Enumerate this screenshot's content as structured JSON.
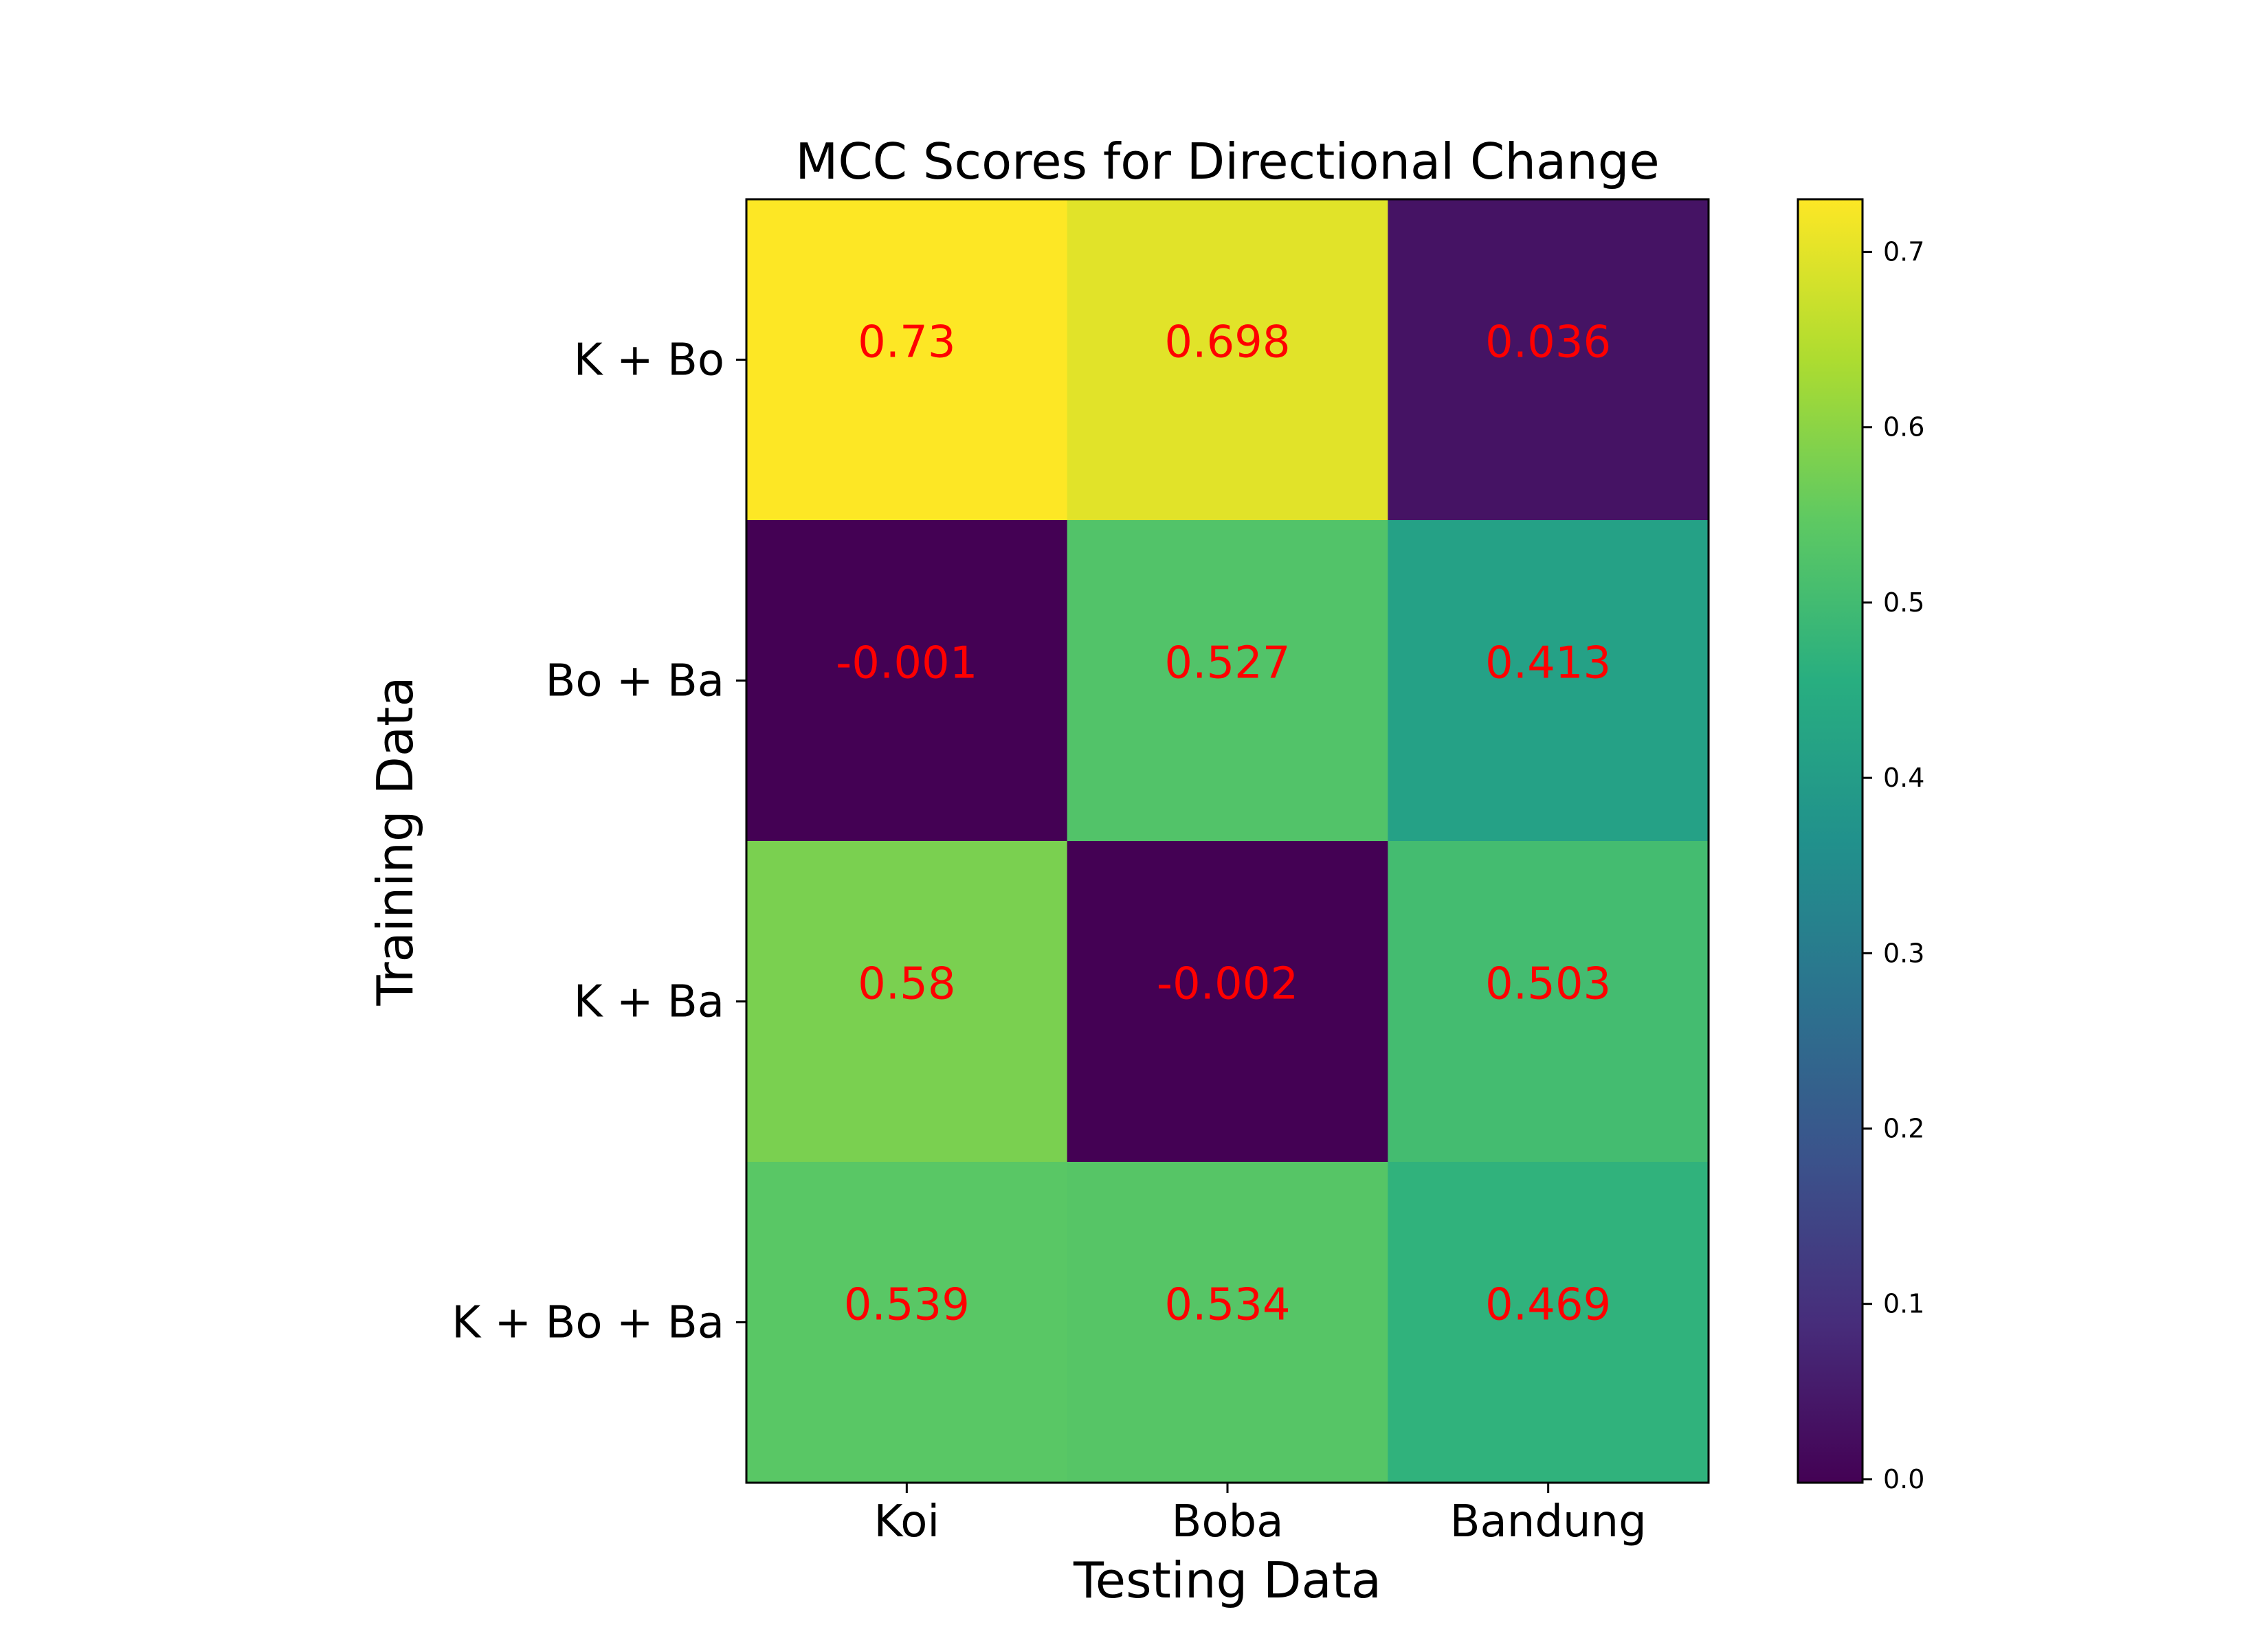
{
  "chart_data": {
    "type": "heatmap",
    "title": "MCC Scores for Directional Change",
    "xlabel": "Testing Data",
    "ylabel": "Training Data",
    "x_categories": [
      "Koi",
      "Boba",
      "Bandung"
    ],
    "y_categories": [
      "K + Bo",
      "Bo + Ba",
      "K + Ba",
      "K + Bo + Ba"
    ],
    "values": [
      [
        0.73,
        0.698,
        0.036
      ],
      [
        -0.001,
        0.527,
        0.413
      ],
      [
        0.58,
        -0.002,
        0.503
      ],
      [
        0.539,
        0.534,
        0.469
      ]
    ],
    "cell_labels": [
      [
        "0.73",
        "0.698",
        "0.036"
      ],
      [
        "-0.001",
        "0.527",
        "0.413"
      ],
      [
        "0.58",
        "-0.002",
        "0.503"
      ],
      [
        "0.539",
        "0.534",
        "0.469"
      ]
    ],
    "annotation_color": "#ff0000",
    "colormap": "viridis",
    "color_range": [
      -0.002,
      0.73
    ],
    "colorbar": {
      "ticks": [
        0.0,
        0.1,
        0.2,
        0.3,
        0.4,
        0.5,
        0.6,
        0.7
      ],
      "tick_labels": [
        "0.0",
        "0.1",
        "0.2",
        "0.3",
        "0.4",
        "0.5",
        "0.6",
        "0.7"
      ]
    }
  }
}
